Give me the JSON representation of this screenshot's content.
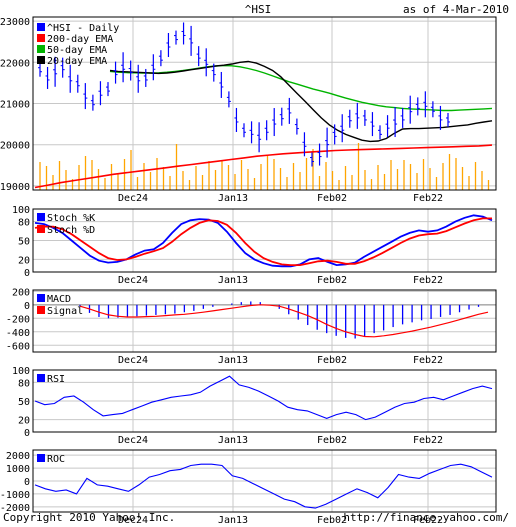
{
  "header": {
    "title": "^HSI",
    "as_of": "as of  4-Mar-2010"
  },
  "footer": {
    "copyright": "Copyright 2010 Yahoo! Inc.",
    "url": "http://finance.yahoo.com/"
  },
  "colors": {
    "price": "#0000ff",
    "ema200": "#ff0000",
    "ema50": "#00b400",
    "ema20": "#000000",
    "volume": "#ffa500",
    "stoch_k": "#0000ff",
    "stoch_d": "#ff0000",
    "macd": "#0000ff",
    "signal": "#ff0000",
    "rsi": "#0000ff",
    "roc": "#0000ff",
    "grid": "#c8c8c8"
  },
  "chart_data": [
    {
      "type": "ohlc",
      "xlabels": [
        "Dec24",
        "Jan13",
        "Feb02",
        "Feb22"
      ],
      "ylim": [
        18900,
        23100
      ],
      "yticks": [
        "23000",
        "22000",
        "21000",
        "20000",
        "19000"
      ],
      "legend": [
        "^HSI - Daily",
        "200-day EMA",
        "50-day EMA",
        "20-day EMA"
      ],
      "price": [
        21820,
        21620,
        21770,
        21870,
        21600,
        21480,
        21180,
        21020,
        21250,
        21350,
        21750,
        21880,
        21800,
        21600,
        21620,
        21880,
        22100,
        22420,
        22600,
        22700,
        22520,
        22150,
        22000,
        21750,
        21450,
        21100,
        20600,
        20350,
        20300,
        20180,
        20350,
        20550,
        20680,
        20820,
        20440,
        20010,
        19640,
        19760,
        20050,
        20250,
        20400,
        20630,
        20700,
        20650,
        20500,
        20300,
        20450,
        20550,
        20650,
        20850,
        20930,
        20980,
        20860,
        20650,
        20600
      ],
      "ema20": [
        21800,
        21780,
        21770,
        21760,
        21750,
        21740,
        21730,
        21740,
        21760,
        21790,
        21820,
        21850,
        21880,
        21910,
        21930,
        21960,
        22000,
        22020,
        21980,
        21900,
        21800,
        21650,
        21450,
        21250,
        21050,
        20850,
        20650,
        20480,
        20350,
        20250,
        20180,
        20110,
        20080,
        20090,
        20150,
        20280,
        20380,
        20390,
        20390,
        20400,
        20410,
        20420,
        20440,
        20460,
        20480,
        20520,
        20550,
        20580
      ],
      "ema50": [
        21780,
        21760,
        21750,
        21745,
        21740,
        21740,
        21745,
        21760,
        21780,
        21800,
        21830,
        21860,
        21890,
        21910,
        21920,
        21915,
        21890,
        21850,
        21800,
        21740,
        21670,
        21600,
        21530,
        21470,
        21410,
        21350,
        21300,
        21250,
        21190,
        21130,
        21080,
        21030,
        20990,
        20950,
        20920,
        20900,
        20880,
        20870,
        20860,
        20850,
        20840,
        20830,
        20830,
        20840,
        20850,
        20860,
        20870,
        20880
      ],
      "ema200": [
        18960,
        19020,
        19080,
        19130,
        19180,
        19230,
        19280,
        19320,
        19360,
        19400,
        19440,
        19480,
        19520,
        19560,
        19600,
        19640,
        19680,
        19720,
        19750,
        19780,
        19800,
        19820,
        19840,
        19860,
        19870,
        19880,
        19890,
        19900,
        19910,
        19920,
        19930,
        19940,
        19950,
        19960,
        19970,
        19990
      ]
    },
    {
      "type": "line",
      "xlabels": [
        "Dec24",
        "Jan13",
        "Feb02",
        "Feb22"
      ],
      "ylim": [
        0,
        100
      ],
      "yticks": [
        "100",
        "80",
        "50",
        "20",
        "0"
      ],
      "legend": [
        "Stoch %K",
        "Stoch %D"
      ],
      "series": [
        {
          "name": "Stoch %K",
          "values": [
            78,
            76,
            70,
            62,
            50,
            38,
            26,
            18,
            15,
            16,
            20,
            28,
            34,
            36,
            46,
            62,
            76,
            82,
            84,
            83,
            78,
            64,
            46,
            30,
            20,
            14,
            10,
            9,
            9,
            12,
            20,
            22,
            16,
            11,
            12,
            15,
            24,
            32,
            40,
            48,
            56,
            62,
            66,
            64,
            66,
            72,
            80,
            86,
            90,
            88,
            82
          ]
        },
        {
          "name": "Stoch %D",
          "values": [
            70,
            72,
            72,
            68,
            60,
            50,
            40,
            30,
            22,
            19,
            20,
            24,
            29,
            33,
            38,
            48,
            60,
            70,
            78,
            82,
            81,
            75,
            62,
            46,
            32,
            22,
            16,
            12,
            11,
            11,
            14,
            17,
            18,
            16,
            13,
            13,
            17,
            23,
            30,
            38,
            46,
            53,
            58,
            60,
            61,
            65,
            71,
            77,
            82,
            85,
            85
          ]
        }
      ]
    },
    {
      "type": "bar+line",
      "xlabels": [
        "Dec24",
        "Jan13",
        "Feb02",
        "Feb22"
      ],
      "ylim": [
        -700,
        220
      ],
      "yticks": [
        "200",
        "0",
        "-200",
        "-400",
        "-600"
      ],
      "legend": [
        "MACD",
        "Signal"
      ],
      "series": [
        {
          "name": "MACD",
          "values": [
            -20,
            -120,
            -180,
            -200,
            -190,
            -180,
            -170,
            -160,
            -150,
            -140,
            -130,
            -110,
            -90,
            -60,
            -30,
            0,
            20,
            40,
            50,
            40,
            0,
            -60,
            -140,
            -220,
            -300,
            -370,
            -420,
            -460,
            -490,
            -500,
            -470,
            -420,
            -380,
            -330,
            -290,
            -260,
            -230,
            -210,
            -180,
            -150,
            -110,
            -70,
            -30,
            0
          ]
        },
        {
          "name": "Signal",
          "values": [
            -20,
            -60,
            -110,
            -150,
            -170,
            -180,
            -180,
            -175,
            -170,
            -160,
            -150,
            -140,
            -125,
            -110,
            -90,
            -70,
            -50,
            -30,
            -10,
            0,
            -5,
            -20,
            -60,
            -110,
            -160,
            -220,
            -290,
            -350,
            -400,
            -440,
            -470,
            -475,
            -460,
            -440,
            -415,
            -390,
            -360,
            -330,
            -295,
            -260,
            -220,
            -180,
            -140,
            -110
          ]
        }
      ]
    },
    {
      "type": "line",
      "xlabels": [
        "Dec24",
        "Jan13",
        "Feb02",
        "Feb22"
      ],
      "ylim": [
        0,
        100
      ],
      "yticks": [
        "100",
        "80",
        "50",
        "20",
        "0"
      ],
      "legend": [
        "RSI"
      ],
      "series": [
        {
          "name": "RSI",
          "values": [
            50,
            44,
            46,
            56,
            58,
            48,
            36,
            26,
            28,
            30,
            36,
            42,
            48,
            52,
            56,
            58,
            60,
            64,
            74,
            82,
            90,
            76,
            72,
            66,
            58,
            50,
            40,
            36,
            34,
            28,
            22,
            28,
            32,
            28,
            20,
            24,
            32,
            40,
            46,
            48,
            54,
            56,
            52,
            58,
            64,
            70,
            74,
            70
          ]
        }
      ]
    },
    {
      "type": "line",
      "xlabels": [
        "Dec24",
        "Jan13",
        "Feb02",
        "Feb22"
      ],
      "ylim": [
        -2400,
        2400
      ],
      "yticks": [
        "2000",
        "1000",
        "0",
        "-1000",
        "-2000"
      ],
      "legend": [
        "ROC"
      ],
      "series": [
        {
          "name": "ROC",
          "values": [
            -300,
            -600,
            -800,
            -700,
            -1000,
            200,
            -300,
            -400,
            -600,
            -800,
            -300,
            300,
            500,
            800,
            900,
            1200,
            1300,
            1300,
            1200,
            400,
            200,
            -200,
            -600,
            -1000,
            -1400,
            -1600,
            -2000,
            -2100,
            -1800,
            -1400,
            -1000,
            -600,
            -900,
            -1300,
            -500,
            500,
            300,
            200,
            600,
            900,
            1200,
            1300,
            1100,
            700,
            300
          ]
        }
      ]
    }
  ]
}
